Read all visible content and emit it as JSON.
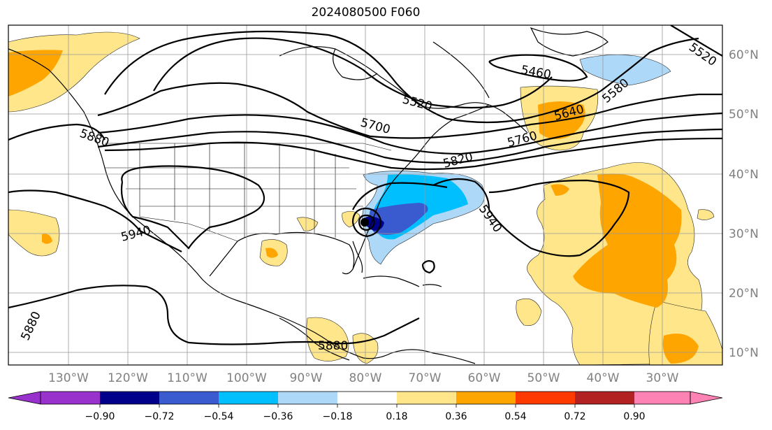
{
  "title": "2024080500 F060",
  "map": {
    "lon_labels": [
      "130°W",
      "120°W",
      "110°W",
      "100°W",
      "90°W",
      "80°W",
      "70°W",
      "60°W",
      "50°W",
      "40°W",
      "30°W"
    ],
    "lat_labels": [
      "60°N",
      "50°N",
      "40°N",
      "30°N",
      "20°N",
      "10°N"
    ],
    "contour_labels": [
      "5520",
      "5460",
      "5520",
      "5580",
      "5640",
      "5700",
      "5760",
      "5820",
      "5880",
      "5940",
      "5940",
      "5880",
      "5880"
    ],
    "grid": true
  },
  "colorbar": {
    "ticks": [
      "−0.90",
      "−0.72",
      "−0.54",
      "−0.36",
      "−0.18",
      "0.18",
      "0.36",
      "0.54",
      "0.72",
      "0.90"
    ],
    "colors": [
      "#9932cc",
      "#00008b",
      "#3a5bd0",
      "#00bfff",
      "#add8f8",
      "#ffffff",
      "#ffe68a",
      "#ffa500",
      "#ff3a00",
      "#b22222",
      "#ff82b4"
    ]
  }
}
